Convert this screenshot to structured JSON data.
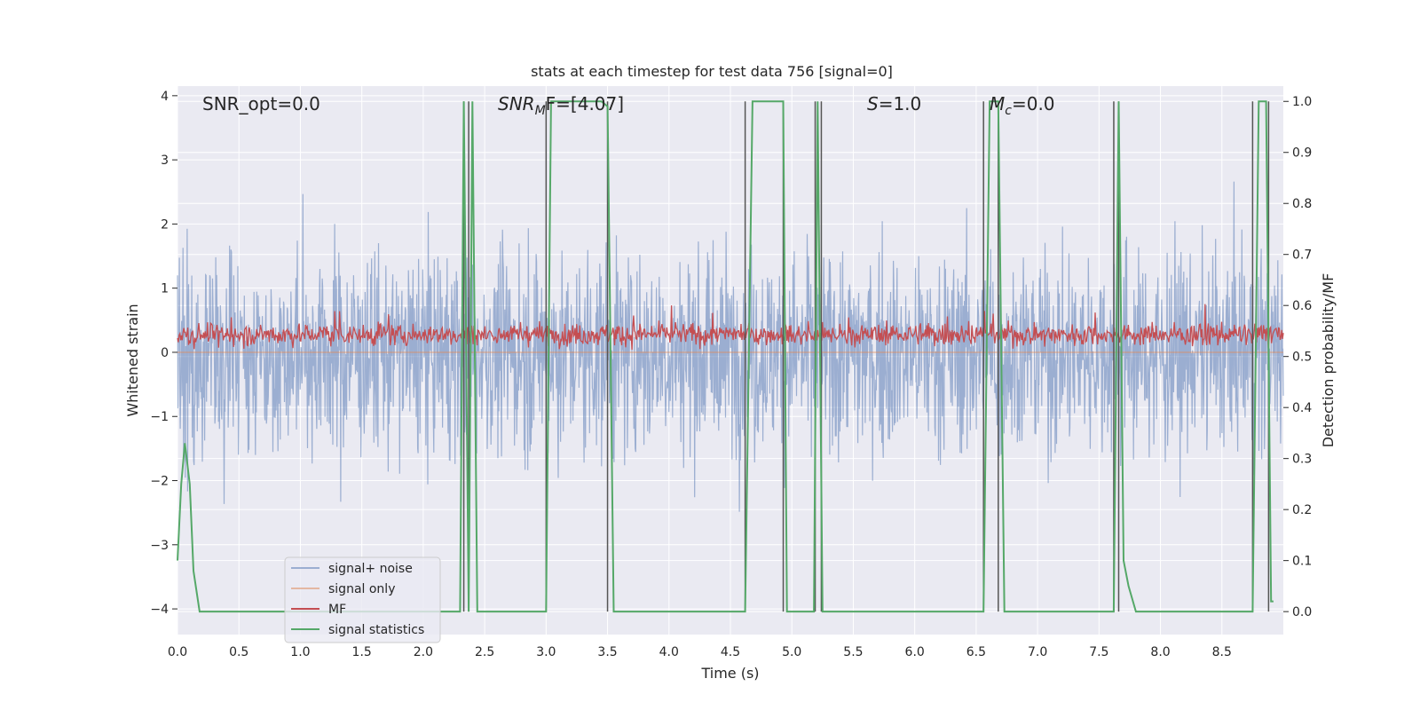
{
  "chart_data": {
    "type": "line",
    "title": "stats at each timestep for test data 756 [signal=0]",
    "xlabel": "Time (s)",
    "ylabel": "Whitened strain",
    "y2label": "Detection probability/MF",
    "xlim": [
      0,
      9.0
    ],
    "ylim": [
      -4.4,
      4.15
    ],
    "y2lim": [
      -0.045,
      1.03
    ],
    "x_ticks": [
      0.0,
      0.5,
      1.0,
      1.5,
      2.0,
      2.5,
      3.0,
      3.5,
      4.0,
      4.5,
      5.0,
      5.5,
      6.0,
      6.5,
      7.0,
      7.5,
      8.0,
      8.5
    ],
    "x_tick_labels": [
      "0.0",
      "0.5",
      "1.0",
      "1.5",
      "2.0",
      "2.5",
      "3.0",
      "3.5",
      "4.0",
      "4.5",
      "5.0",
      "5.5",
      "6.0",
      "6.5",
      "7.0",
      "7.5",
      "8.0",
      "8.5"
    ],
    "y_ticks": [
      -4,
      -3,
      -2,
      -1,
      0,
      1,
      2,
      3,
      4
    ],
    "y_tick_labels": [
      "−4",
      "−3",
      "−2",
      "−1",
      "0",
      "1",
      "2",
      "3",
      "4"
    ],
    "y2_ticks": [
      0.0,
      0.1,
      0.2,
      0.3,
      0.4,
      0.5,
      0.6,
      0.7,
      0.8,
      0.9,
      1.0
    ],
    "y2_tick_labels": [
      "0.0",
      "0.1",
      "0.2",
      "0.3",
      "0.4",
      "0.5",
      "0.6",
      "0.7",
      "0.8",
      "0.9",
      "1.0"
    ],
    "grid": true,
    "legend_placement": "lower-left",
    "annotations": {
      "snr_opt": "SNR_opt=0.0",
      "snr_mf_name": "SNR",
      "snr_mf_sub": "M",
      "snr_mf_tail": "F=[4.07]",
      "s_name": "S",
      "s_tail": "=1.0",
      "mc_name": "M",
      "mc_sub": "c",
      "mc_tail": "=0.0"
    },
    "series": [
      {
        "name": "signal+ noise",
        "color": "#4c72b0",
        "kind": "noise",
        "envelope_y": [
          -3.7,
          3.5
        ],
        "typical_abs_y": 1.5
      },
      {
        "name": "signal only",
        "color": "#dd8452",
        "kind": "flat",
        "value": 0.0
      },
      {
        "name": "MF",
        "color": "#c44e52",
        "kind": "noise",
        "range_y": [
          0.0,
          0.9
        ],
        "mean_y": 0.28
      },
      {
        "name": "signal statistics",
        "color": "#55a868",
        "kind": "step",
        "x": [
          0.0,
          0.03,
          0.06,
          0.1,
          0.13,
          0.18,
          2.3,
          2.33,
          2.37,
          2.4,
          2.44,
          2.47,
          3.0,
          3.04,
          3.08,
          3.45,
          3.5,
          3.55,
          3.58,
          4.62,
          4.68,
          4.93,
          4.96,
          5.0,
          5.18,
          5.21,
          5.25,
          5.3,
          6.56,
          6.61,
          6.68,
          6.73,
          6.76,
          7.62,
          7.66,
          7.7,
          7.74,
          7.8,
          8.75,
          8.8,
          8.86,
          8.9,
          8.92
        ],
        "y": [
          0.1,
          0.25,
          0.33,
          0.25,
          0.08,
          0.0,
          0.0,
          1.0,
          0.0,
          1.0,
          0.0,
          0.0,
          0.0,
          1.0,
          1.0,
          1.0,
          0.99,
          0.0,
          0.0,
          0.0,
          1.0,
          1.0,
          0.0,
          0.0,
          0.0,
          1.0,
          0.0,
          0.0,
          0.0,
          1.0,
          1.0,
          0.0,
          0.0,
          0.0,
          1.0,
          0.1,
          0.05,
          0.0,
          0.0,
          1.0,
          1.0,
          0.02,
          0.02
        ]
      }
    ],
    "vertical_markers_x": [
      2.33,
      2.37,
      3.0,
      3.5,
      4.62,
      4.93,
      5.19,
      5.24,
      6.56,
      6.68,
      7.62,
      7.66,
      8.75,
      8.88
    ]
  }
}
